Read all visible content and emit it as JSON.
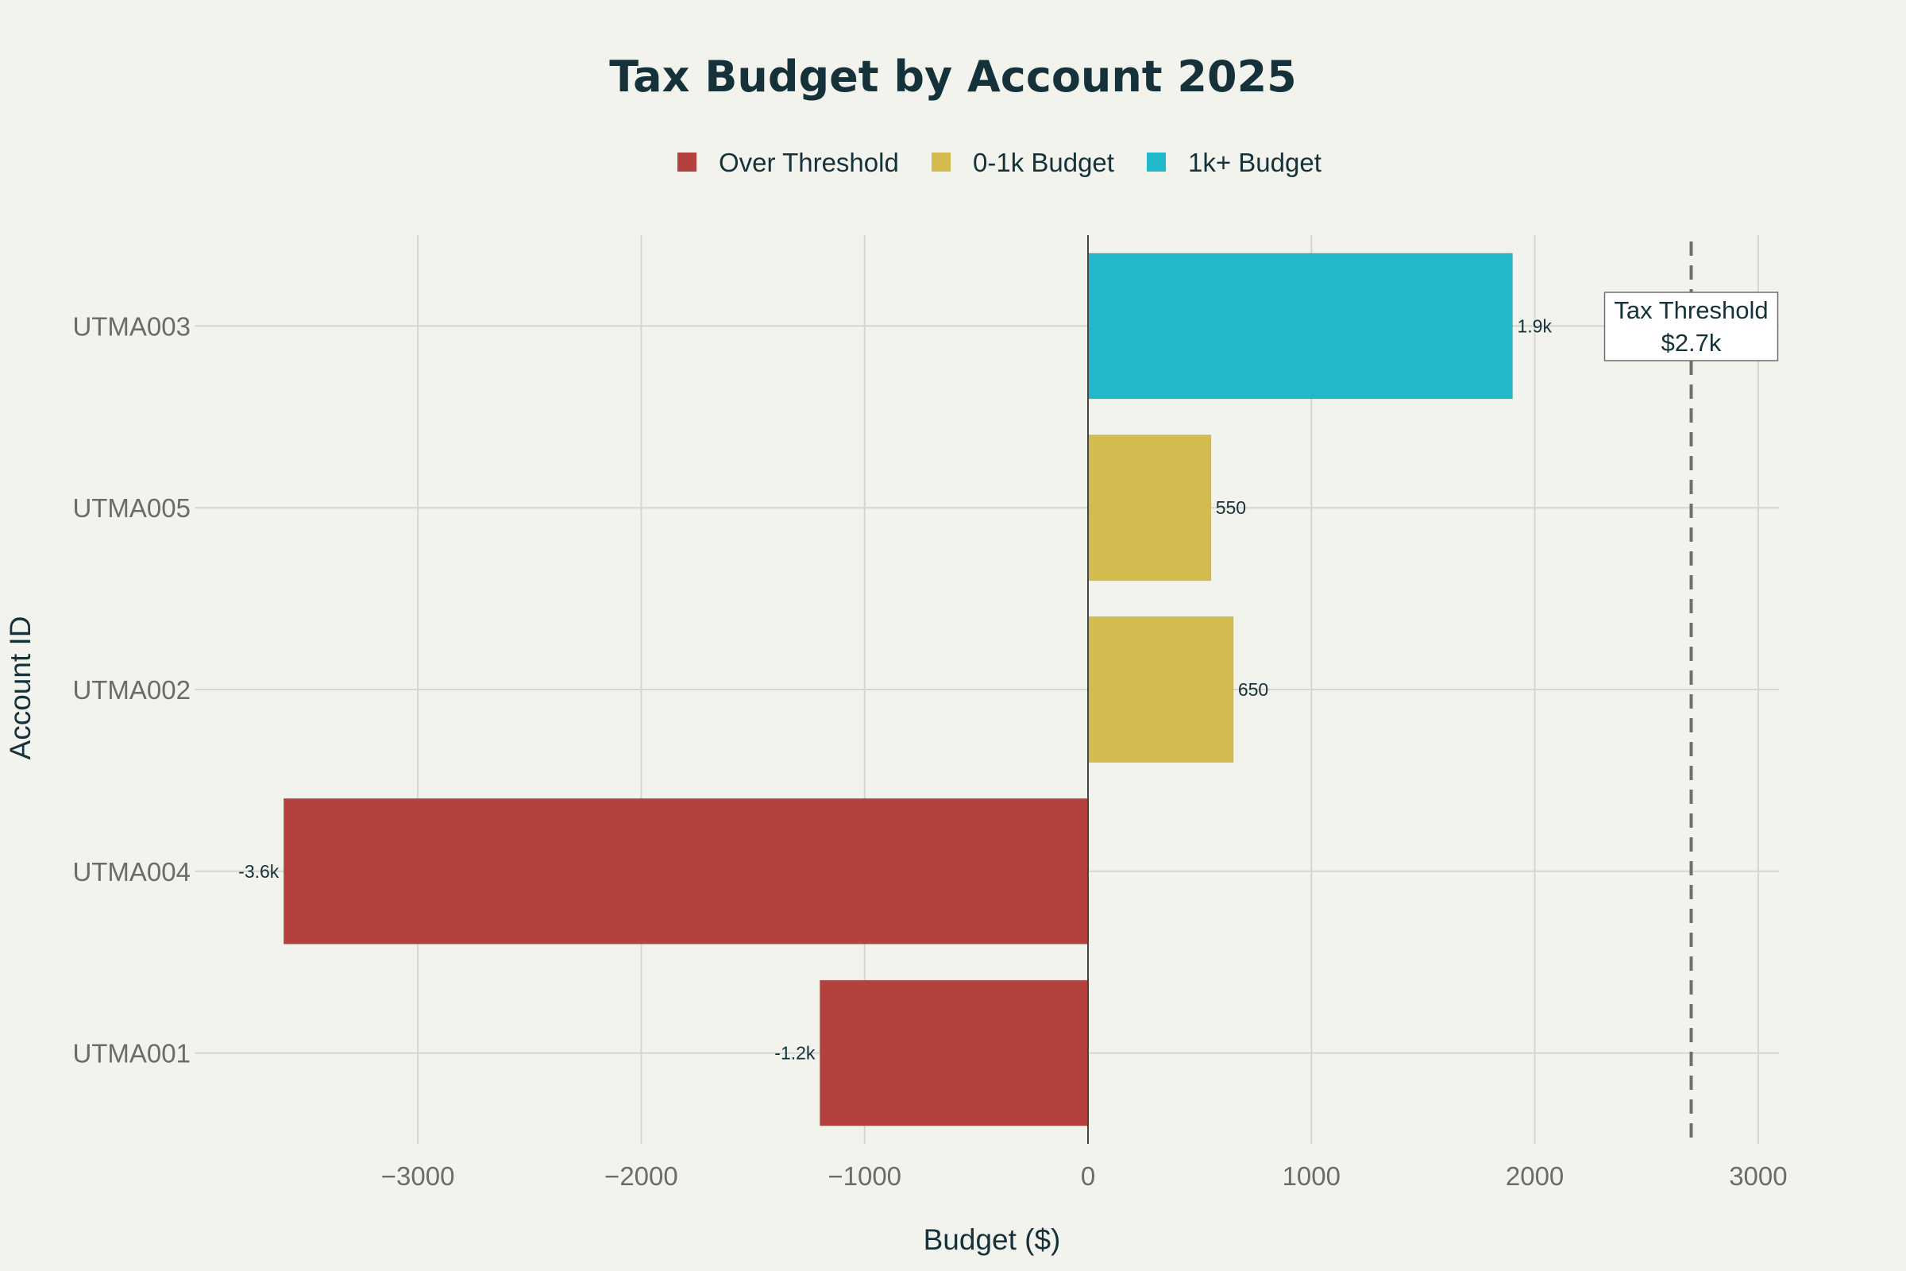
{
  "chart_data": {
    "type": "bar",
    "orientation": "horizontal",
    "title": "Tax Budget by Account 2025",
    "xlabel": "Budget ($)",
    "ylabel": "Account ID",
    "xlim": [
      -4000,
      3100
    ],
    "xticks": [
      -3000,
      -2000,
      -1000,
      0,
      1000,
      2000,
      3000
    ],
    "xtick_labels": [
      "−3000",
      "−2000",
      "−1000",
      "0",
      "1000",
      "2000",
      "3000"
    ],
    "grid": true,
    "legend": {
      "position": "top-center",
      "entries": [
        {
          "name": "Over Threshold",
          "color": "#b5413e"
        },
        {
          "name": "0-1k Budget",
          "color": "#d3bb4f"
        },
        {
          "name": "1k+ Budget",
          "color": "#22b8cc"
        }
      ]
    },
    "bars": [
      {
        "category": "UTMA003",
        "value": 1900,
        "label": "1.9k",
        "group": "1k+ Budget"
      },
      {
        "category": "UTMA005",
        "value": 550,
        "label": "550",
        "group": "0-1k Budget"
      },
      {
        "category": "UTMA002",
        "value": 650,
        "label": "650",
        "group": "0-1k Budget"
      },
      {
        "category": "UTMA004",
        "value": -3600,
        "label": "-3.6k",
        "group": "Over Threshold"
      },
      {
        "category": "UTMA001",
        "value": -1200,
        "label": "-1.2k",
        "group": "Over Threshold"
      }
    ],
    "threshold": {
      "value": 2700,
      "label_line1": "Tax Threshold",
      "label_line2": "$2.7k",
      "line_style": "dashed",
      "color": "#6e6e6e"
    }
  }
}
